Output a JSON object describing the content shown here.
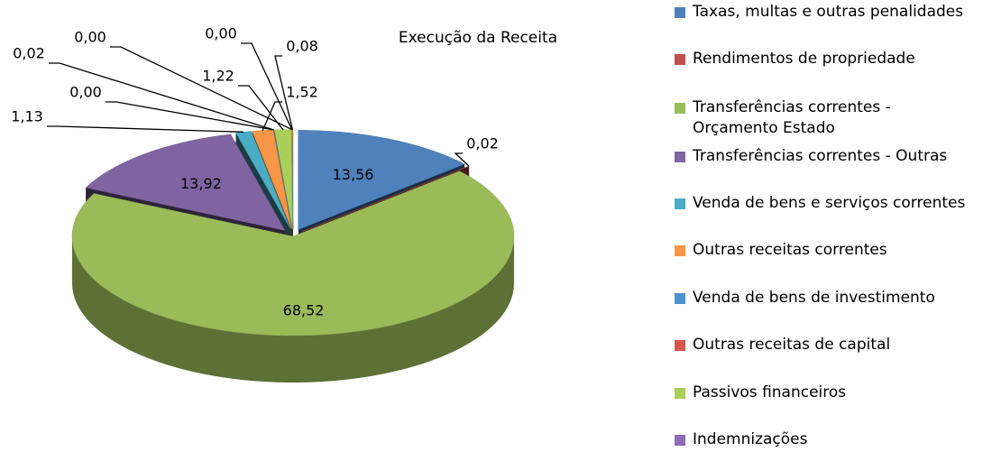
{
  "chart_data": {
    "type": "pie",
    "title": "Execução da Receita",
    "categories": [
      "Taxas, multas e outras penalidades",
      "Rendimentos de propriedade",
      "Transferências correntes - Orçamento Estado",
      "Transferências correntes - Outras",
      "Venda de bens e serviços correntes",
      "Outras receitas correntes",
      "Venda de bens de investimento",
      "Outras receitas de capital",
      "Passivos financeiros",
      "Indemnizações",
      null,
      null
    ],
    "values": [
      13.56,
      0.02,
      68.52,
      13.92,
      1.13,
      1.52,
      0.0,
      0.02,
      1.22,
      0.0,
      0.0,
      0.08
    ],
    "value_labels": [
      "13,56",
      "0,02",
      "68,52",
      "13,92",
      "1,13",
      "1,52",
      "0,00",
      "0,02",
      "1,22",
      "0,00",
      "0,00",
      "0,08"
    ],
    "colors": [
      "#4f81bd",
      "#c0504d",
      "#9bbb59",
      "#8064a2",
      "#4bacc6",
      "#f79646",
      "#4f93cf",
      "#d9534f",
      "#a9cf5a",
      "#8e6bb5",
      "#3a8fa8",
      "#e07b39"
    ]
  }
}
